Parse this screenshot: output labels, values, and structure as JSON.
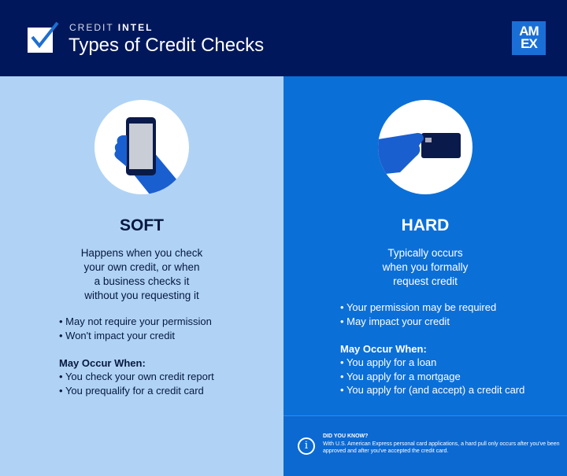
{
  "header": {
    "kicker_light": "CREDIT",
    "kicker_bold": "INTEL",
    "title": "Types of Credit Checks",
    "logo": "AM EX",
    "check_icon": "checkbox-checked-icon"
  },
  "colors": {
    "header": "#01175b",
    "soft_panel": "#b0d3f5",
    "hard_panel": "#0b6fd8"
  },
  "soft": {
    "icon": "hand-holding-phone-icon",
    "title": "SOFT",
    "description": [
      "Happens when you check",
      "your own credit, or when",
      "a business checks it",
      "without you requesting it"
    ],
    "points": [
      "May not require your permission",
      "Won't impact your credit"
    ],
    "occur_title": "May Occur When:",
    "occur": [
      "You check your own credit report",
      "You prequalify for a credit card"
    ]
  },
  "hard": {
    "icon": "hand-holding-card-icon",
    "title": "HARD",
    "description": [
      "Typically occurs",
      "when you formally",
      "request credit"
    ],
    "points": [
      "Your permission may be required",
      "May impact your credit"
    ],
    "occur_title": "May Occur When:",
    "occur": [
      "You apply for a loan",
      "You apply for a mortgage",
      "You apply for (and accept) a credit card"
    ]
  },
  "did_you_know": {
    "title": "DID YOU KNOW?",
    "text": "With U.S. American Express personal card applications, a hard pull only occurs after you've been approved and after you've accepted the credit card."
  }
}
